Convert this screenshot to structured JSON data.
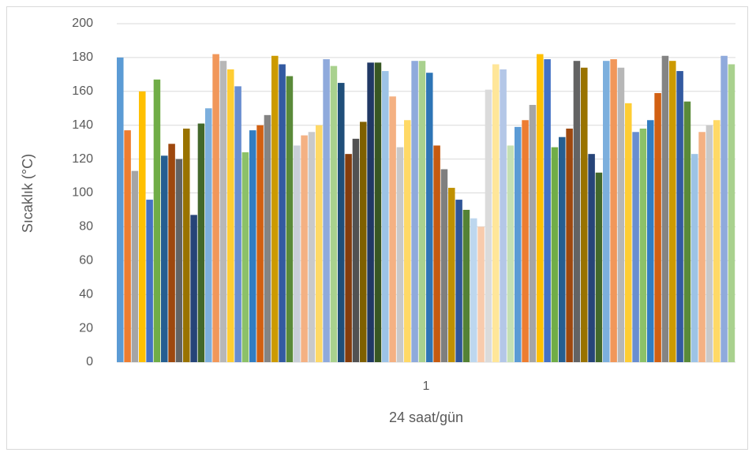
{
  "chart_data": {
    "type": "bar",
    "categories": [
      "1"
    ],
    "x_label": "24 saat/gün",
    "y_label": "Sıcaklık (°C)",
    "ylim": [
      0,
      200
    ],
    "yticks": [
      0,
      20,
      40,
      60,
      80,
      100,
      120,
      140,
      160,
      180,
      200
    ],
    "grid": true,
    "series": [
      {
        "color": "#5B9BD5",
        "values": [
          180
        ]
      },
      {
        "color": "#ED7D31",
        "values": [
          137
        ]
      },
      {
        "color": "#A5A5A5",
        "values": [
          113
        ]
      },
      {
        "color": "#FFC000",
        "values": [
          160
        ]
      },
      {
        "color": "#4472C4",
        "values": [
          96
        ]
      },
      {
        "color": "#70AD47",
        "values": [
          167
        ]
      },
      {
        "color": "#255E91",
        "values": [
          122
        ]
      },
      {
        "color": "#9E480E",
        "values": [
          129
        ]
      },
      {
        "color": "#636363",
        "values": [
          120
        ]
      },
      {
        "color": "#997300",
        "values": [
          138
        ]
      },
      {
        "color": "#264478",
        "values": [
          87
        ]
      },
      {
        "color": "#43682B",
        "values": [
          141
        ]
      },
      {
        "color": "#7CAFDD",
        "values": [
          150
        ]
      },
      {
        "color": "#F1975A",
        "values": [
          182
        ]
      },
      {
        "color": "#B7B7B7",
        "values": [
          178
        ]
      },
      {
        "color": "#FFCD33",
        "values": [
          173
        ]
      },
      {
        "color": "#698ED0",
        "values": [
          163
        ]
      },
      {
        "color": "#8CC168",
        "values": [
          124
        ]
      },
      {
        "color": "#327DC2",
        "values": [
          137
        ]
      },
      {
        "color": "#D26012",
        "values": [
          140
        ]
      },
      {
        "color": "#848484",
        "values": [
          146
        ]
      },
      {
        "color": "#CC9A00",
        "values": [
          181
        ]
      },
      {
        "color": "#335AA1",
        "values": [
          176
        ]
      },
      {
        "color": "#5A8A39",
        "values": [
          169
        ]
      },
      {
        "color": "#C9CFD8",
        "values": [
          128
        ]
      },
      {
        "color": "#F4B183",
        "values": [
          134
        ]
      },
      {
        "color": "#C9C9C9",
        "values": [
          136
        ]
      },
      {
        "color": "#FFD966",
        "values": [
          140
        ]
      },
      {
        "color": "#8FAADC",
        "values": [
          179
        ]
      },
      {
        "color": "#A9D18E",
        "values": [
          175
        ]
      },
      {
        "color": "#1F4E79",
        "values": [
          165
        ]
      },
      {
        "color": "#843C0C",
        "values": [
          123
        ]
      },
      {
        "color": "#525252",
        "values": [
          132
        ]
      },
      {
        "color": "#7F6000",
        "values": [
          142
        ]
      },
      {
        "color": "#203864",
        "values": [
          177
        ]
      },
      {
        "color": "#385723",
        "values": [
          177
        ]
      },
      {
        "color": "#9DC3E6",
        "values": [
          172
        ]
      },
      {
        "color": "#F4B183",
        "values": [
          157
        ]
      },
      {
        "color": "#C9C9C9",
        "values": [
          127
        ]
      },
      {
        "color": "#FFD966",
        "values": [
          143
        ]
      },
      {
        "color": "#8FAADC",
        "values": [
          178
        ]
      },
      {
        "color": "#A9D18E",
        "values": [
          178
        ]
      },
      {
        "color": "#2E75B6",
        "values": [
          171
        ]
      },
      {
        "color": "#C55A11",
        "values": [
          128
        ]
      },
      {
        "color": "#7F7F7F",
        "values": [
          114
        ]
      },
      {
        "color": "#BF9000",
        "values": [
          103
        ]
      },
      {
        "color": "#2F5597",
        "values": [
          96
        ]
      },
      {
        "color": "#548235",
        "values": [
          90
        ]
      },
      {
        "color": "#BDD7EE",
        "values": [
          85
        ]
      },
      {
        "color": "#F8CBAD",
        "values": [
          80
        ]
      },
      {
        "color": "#DBDBDB",
        "values": [
          161
        ]
      },
      {
        "color": "#FFE699",
        "values": [
          176
        ]
      },
      {
        "color": "#B4C7E7",
        "values": [
          173
        ]
      },
      {
        "color": "#C5E0B4",
        "values": [
          128
        ]
      },
      {
        "color": "#5B9BD5",
        "values": [
          139
        ]
      },
      {
        "color": "#ED7D31",
        "values": [
          143
        ]
      },
      {
        "color": "#A5A5A5",
        "values": [
          152
        ]
      },
      {
        "color": "#FFC000",
        "values": [
          182
        ]
      },
      {
        "color": "#4472C4",
        "values": [
          179
        ]
      },
      {
        "color": "#70AD47",
        "values": [
          127
        ]
      },
      {
        "color": "#255E91",
        "values": [
          133
        ]
      },
      {
        "color": "#9E480E",
        "values": [
          138
        ]
      },
      {
        "color": "#636363",
        "values": [
          178
        ]
      },
      {
        "color": "#997300",
        "values": [
          174
        ]
      },
      {
        "color": "#264478",
        "values": [
          123
        ]
      },
      {
        "color": "#43682B",
        "values": [
          112
        ]
      },
      {
        "color": "#7CAFDD",
        "values": [
          178
        ]
      },
      {
        "color": "#F1975A",
        "values": [
          179
        ]
      },
      {
        "color": "#B7B7B7",
        "values": [
          174
        ]
      },
      {
        "color": "#FFCD33",
        "values": [
          153
        ]
      },
      {
        "color": "#698ED0",
        "values": [
          136
        ]
      },
      {
        "color": "#8CC168",
        "values": [
          138
        ]
      },
      {
        "color": "#327DC2",
        "values": [
          143
        ]
      },
      {
        "color": "#D26012",
        "values": [
          159
        ]
      },
      {
        "color": "#848484",
        "values": [
          181
        ]
      },
      {
        "color": "#CC9A00",
        "values": [
          178
        ]
      },
      {
        "color": "#335AA1",
        "values": [
          172
        ]
      },
      {
        "color": "#5A8A39",
        "values": [
          154
        ]
      },
      {
        "color": "#9DC3E6",
        "values": [
          123
        ]
      },
      {
        "color": "#F4B183",
        "values": [
          136
        ]
      },
      {
        "color": "#C9C9C9",
        "values": [
          140
        ]
      },
      {
        "color": "#FFD966",
        "values": [
          143
        ]
      },
      {
        "color": "#8FAADC",
        "values": [
          181
        ]
      },
      {
        "color": "#A9D18E",
        "values": [
          176
        ]
      }
    ]
  }
}
